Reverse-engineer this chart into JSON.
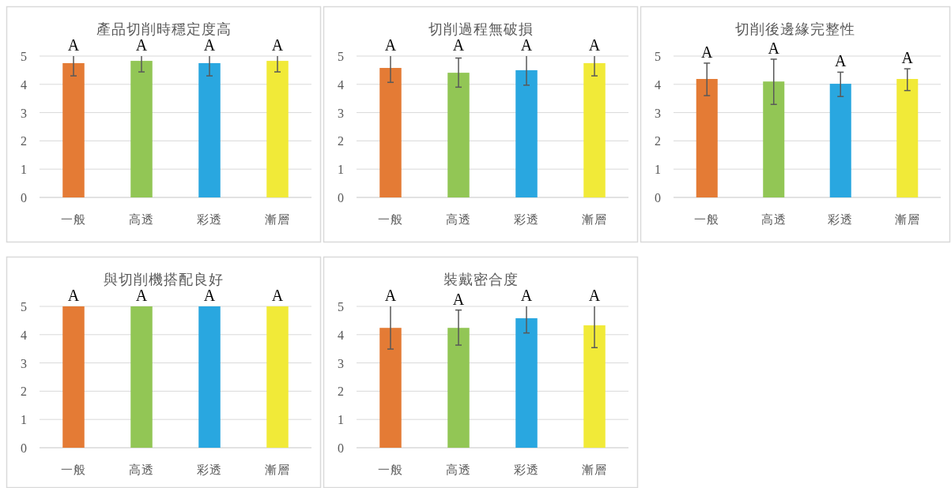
{
  "chart_data": [
    {
      "type": "bar",
      "title": "產品切削時穩定度高",
      "categories": [
        "一般",
        "高透",
        "彩透",
        "漸層"
      ],
      "values": [
        4.75,
        4.83,
        4.75,
        4.83
      ],
      "colors": [
        "#e47b35",
        "#92c655",
        "#29a7e0",
        "#f1ea38"
      ],
      "errors": [
        [
          4.3,
          5
        ],
        [
          4.44,
          5
        ],
        [
          4.3,
          5
        ],
        [
          4.44,
          5
        ]
      ],
      "ylim": [
        0,
        5
      ],
      "yticks": [
        0,
        1,
        2,
        3,
        4,
        5
      ],
      "grid": "y",
      "annotations": [
        {
          "text": "A",
          "x": "一般",
          "y": 5
        },
        {
          "text": "A",
          "x": "高透",
          "y": 5
        },
        {
          "text": "A",
          "x": "彩透",
          "y": 5
        },
        {
          "text": "A",
          "x": "漸層",
          "y": 5
        }
      ]
    },
    {
      "type": "bar",
      "title": "切削過程無破損",
      "categories": [
        "一般",
        "高透",
        "彩透",
        "漸層"
      ],
      "values": [
        4.58,
        4.41,
        4.5,
        4.75
      ],
      "colors": [
        "#e47b35",
        "#92c655",
        "#29a7e0",
        "#f1ea38"
      ],
      "errors": [
        [
          4.07,
          5
        ],
        [
          3.9,
          4.93
        ],
        [
          3.97,
          5
        ],
        [
          4.3,
          5
        ]
      ],
      "ylim": [
        0,
        5
      ],
      "yticks": [
        0,
        1,
        2,
        3,
        4,
        5
      ],
      "grid": "y",
      "annotations": [
        {
          "text": "A",
          "x": "一般",
          "y": 5
        },
        {
          "text": "A",
          "x": "高透",
          "y": 5
        },
        {
          "text": "A",
          "x": "彩透",
          "y": 5
        },
        {
          "text": "A",
          "x": "漸層",
          "y": 5
        }
      ]
    },
    {
      "type": "bar",
      "title": "切削後邊緣完整性",
      "categories": [
        "一般",
        "高透",
        "彩透",
        "漸層"
      ],
      "values": [
        4.19,
        4.1,
        4.02,
        4.19
      ],
      "colors": [
        "#e47b35",
        "#92c655",
        "#29a7e0",
        "#f1ea38"
      ],
      "errors": [
        [
          3.6,
          4.75
        ],
        [
          3.29,
          4.89
        ],
        [
          3.57,
          4.43
        ],
        [
          3.78,
          4.55
        ]
      ],
      "ylim": [
        0,
        5
      ],
      "yticks": [
        0,
        1,
        2,
        3,
        4,
        5
      ],
      "grid": "y",
      "annotations": [
        {
          "text": "A",
          "x": "一般",
          "y": 4.75
        },
        {
          "text": "A",
          "x": "高透",
          "y": 4.89
        },
        {
          "text": "A",
          "x": "彩透",
          "y": 4.43
        },
        {
          "text": "A",
          "x": "漸層",
          "y": 4.55
        }
      ]
    },
    {
      "type": "bar",
      "title": "與切削機搭配良好",
      "categories": [
        "一般",
        "高透",
        "彩透",
        "漸層"
      ],
      "values": [
        5,
        5,
        5,
        5
      ],
      "colors": [
        "#e47b35",
        "#92c655",
        "#29a7e0",
        "#f1ea38"
      ],
      "ylim": [
        0,
        5
      ],
      "yticks": [
        0,
        1,
        2,
        3,
        4,
        5
      ],
      "grid": "y",
      "annotations": [
        {
          "text": "A",
          "x": "一般",
          "y": 5
        },
        {
          "text": "A",
          "x": "高透",
          "y": 5
        },
        {
          "text": "A",
          "x": "彩透",
          "y": 5
        },
        {
          "text": "A",
          "x": "漸層",
          "y": 5
        }
      ]
    },
    {
      "type": "bar",
      "title": "裝戴密合度",
      "categories": [
        "一般",
        "高透",
        "彩透",
        "漸層"
      ],
      "values": [
        4.24,
        4.24,
        4.58,
        4.33
      ],
      "colors": [
        "#e47b35",
        "#92c655",
        "#29a7e0",
        "#f1ea38"
      ],
      "errors": [
        [
          3.49,
          5
        ],
        [
          3.63,
          4.87
        ],
        [
          4.06,
          5
        ],
        [
          3.54,
          5
        ]
      ],
      "ylim": [
        0,
        5
      ],
      "yticks": [
        0,
        1,
        2,
        3,
        4,
        5
      ],
      "grid": "y",
      "annotations": [
        {
          "text": "A",
          "x": "一般",
          "y": 5
        },
        {
          "text": "A",
          "x": "高透",
          "y": 4.87
        },
        {
          "text": "A",
          "x": "彩透",
          "y": 5
        },
        {
          "text": "A",
          "x": "漸層",
          "y": 5
        }
      ]
    }
  ]
}
